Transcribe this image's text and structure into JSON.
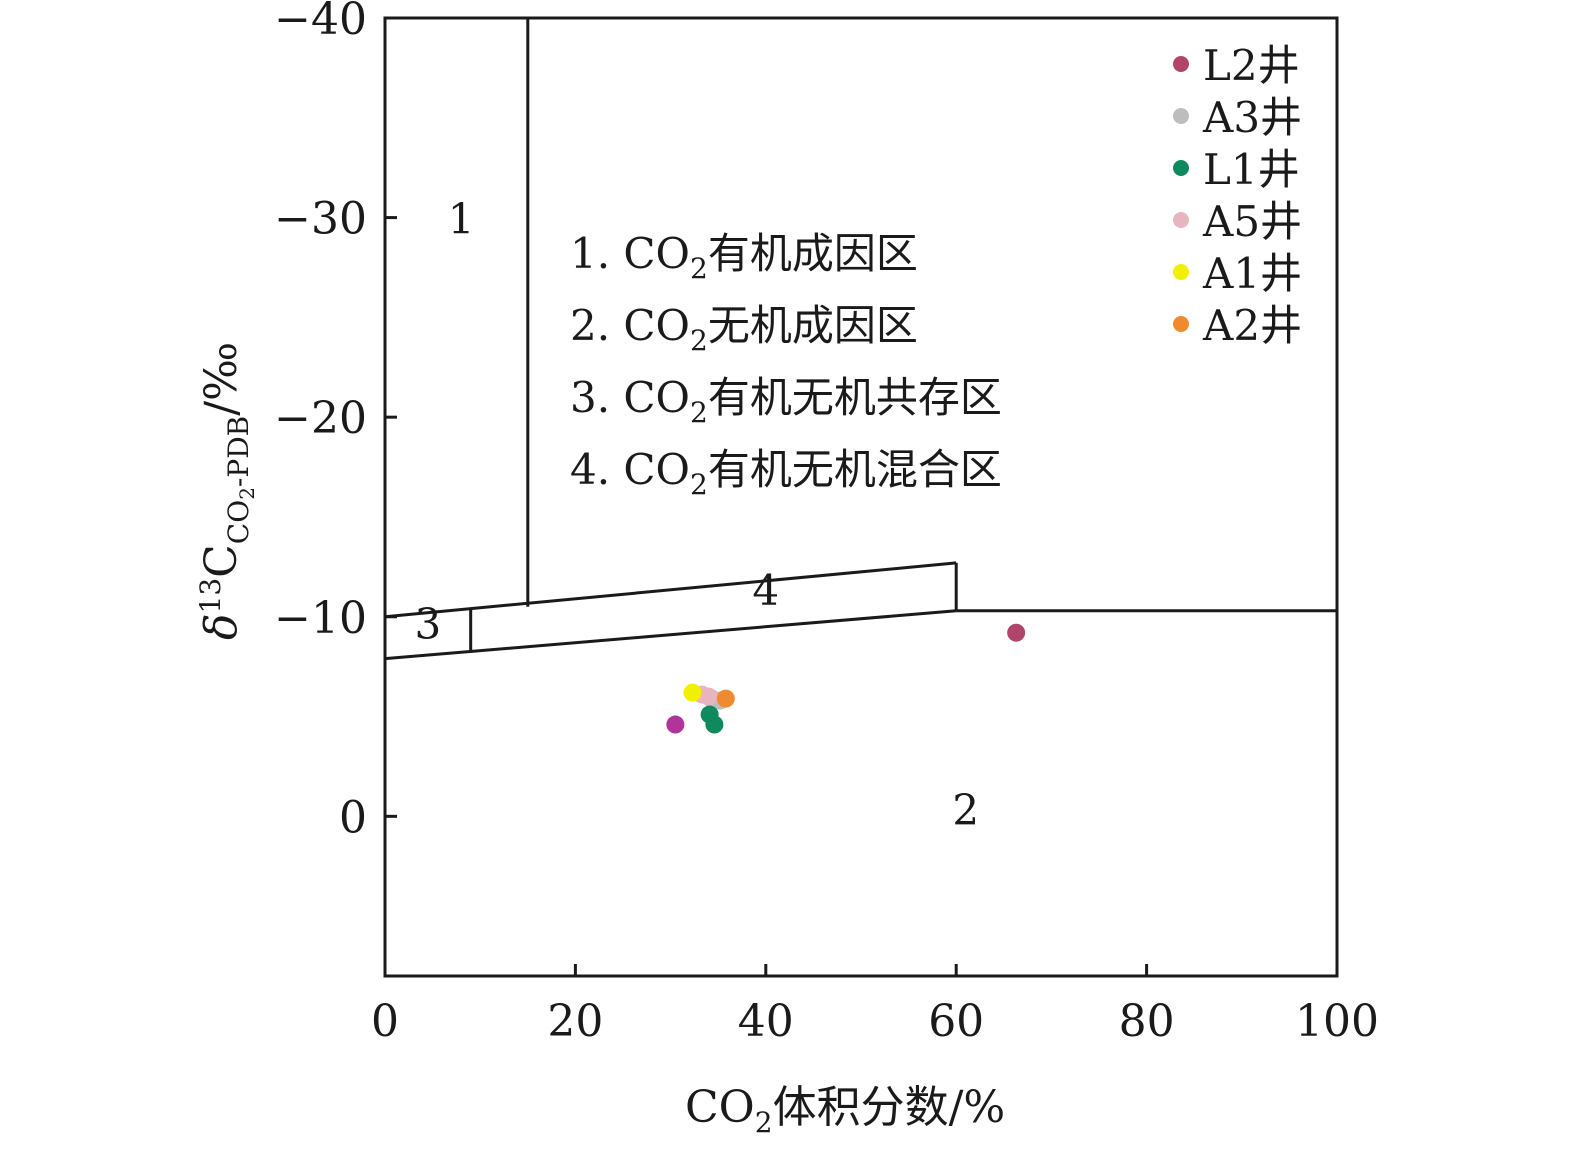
{
  "chart_data": {
    "type": "scatter",
    "xlabel": {
      "main": "CO",
      "sub": "2",
      "rest": "体积分数/%"
    },
    "ylabel": {
      "delta": "δ",
      "sup": "13",
      "main": "C",
      "sub": "CO",
      "subsub": "2",
      "subrest": "-PDB",
      "rest": "/‰"
    },
    "xlim": [
      0,
      100
    ],
    "ylim": [
      -40,
      8
    ],
    "y_inverted": true,
    "x_ticks": [
      "0",
      "20",
      "40",
      "60",
      "80",
      "100"
    ],
    "y_ticks": [
      "−40",
      "−30",
      "−20",
      "−10",
      "0"
    ],
    "x_tick_values": [
      0,
      20,
      40,
      60,
      80,
      100
    ],
    "y_tick_values": [
      -40,
      -30,
      -20,
      -10,
      0
    ],
    "grid": false,
    "legend_position": "top-right",
    "region_labels": [
      {
        "text": "1",
        "x": 8,
        "y": -29.2
      },
      {
        "text": "2",
        "x": 61,
        "y": 0.4
      },
      {
        "text": "3",
        "x": 4.5,
        "y": -8.9
      },
      {
        "text": "4",
        "x": 40,
        "y": -10.6
      }
    ],
    "region_notes": [
      {
        "num": "1. CO",
        "sub": "2",
        "rest": "有机成因区"
      },
      {
        "num": "2. CO",
        "sub": "2",
        "rest": "无机成因区"
      },
      {
        "num": "3. CO",
        "sub": "2",
        "rest": "有机无机共存区"
      },
      {
        "num": "4. CO",
        "sub": "2",
        "rest": "有机无机混合区"
      }
    ],
    "boundaries": [
      {
        "x": [
          15,
          15
        ],
        "y": [
          -40,
          -10.5
        ]
      },
      {
        "x": [
          0,
          60
        ],
        "y": [
          -10,
          -12.7
        ]
      },
      {
        "x": [
          0,
          60
        ],
        "y": [
          -7.9,
          -10.3
        ]
      },
      {
        "x": [
          9,
          9
        ],
        "y": [
          -10.4,
          -8.2
        ]
      },
      {
        "x": [
          60,
          60
        ],
        "y": [
          -12.7,
          -10.3
        ]
      },
      {
        "x": [
          60,
          100
        ],
        "y": [
          -10.3,
          -10.3
        ]
      }
    ],
    "series": [
      {
        "name": "L2井",
        "color": "#b0446a",
        "points": [
          [
            66.3,
            -9.2
          ],
          [
            30.5,
            -4.6
          ]
        ]
      },
      {
        "name": "A3井",
        "color": "#bdbdbd",
        "points": [
          [
            34.3,
            -5.9
          ],
          [
            35.2,
            -5.8
          ]
        ]
      },
      {
        "name": "L1井",
        "color": "#0f8a5f",
        "points": [
          [
            34.1,
            -5.1
          ],
          [
            34.6,
            -4.6
          ]
        ]
      },
      {
        "name": "A5井",
        "color": "#e8b4c0",
        "points": [
          [
            33.3,
            -6.1
          ],
          [
            34.0,
            -6.0
          ]
        ]
      },
      {
        "name": "A1井",
        "color": "#f0f000",
        "points": [
          [
            32.3,
            -6.2
          ]
        ]
      },
      {
        "name": "A2井",
        "color": "#f08a30",
        "points": [
          [
            35.8,
            -5.9
          ]
        ]
      }
    ],
    "colors": {
      "axis": "#1a1a1a",
      "extra_point": "#b0349a"
    },
    "extra_points": [
      {
        "series": "L2井",
        "x": 30.5,
        "y": -4.6
      }
    ]
  }
}
